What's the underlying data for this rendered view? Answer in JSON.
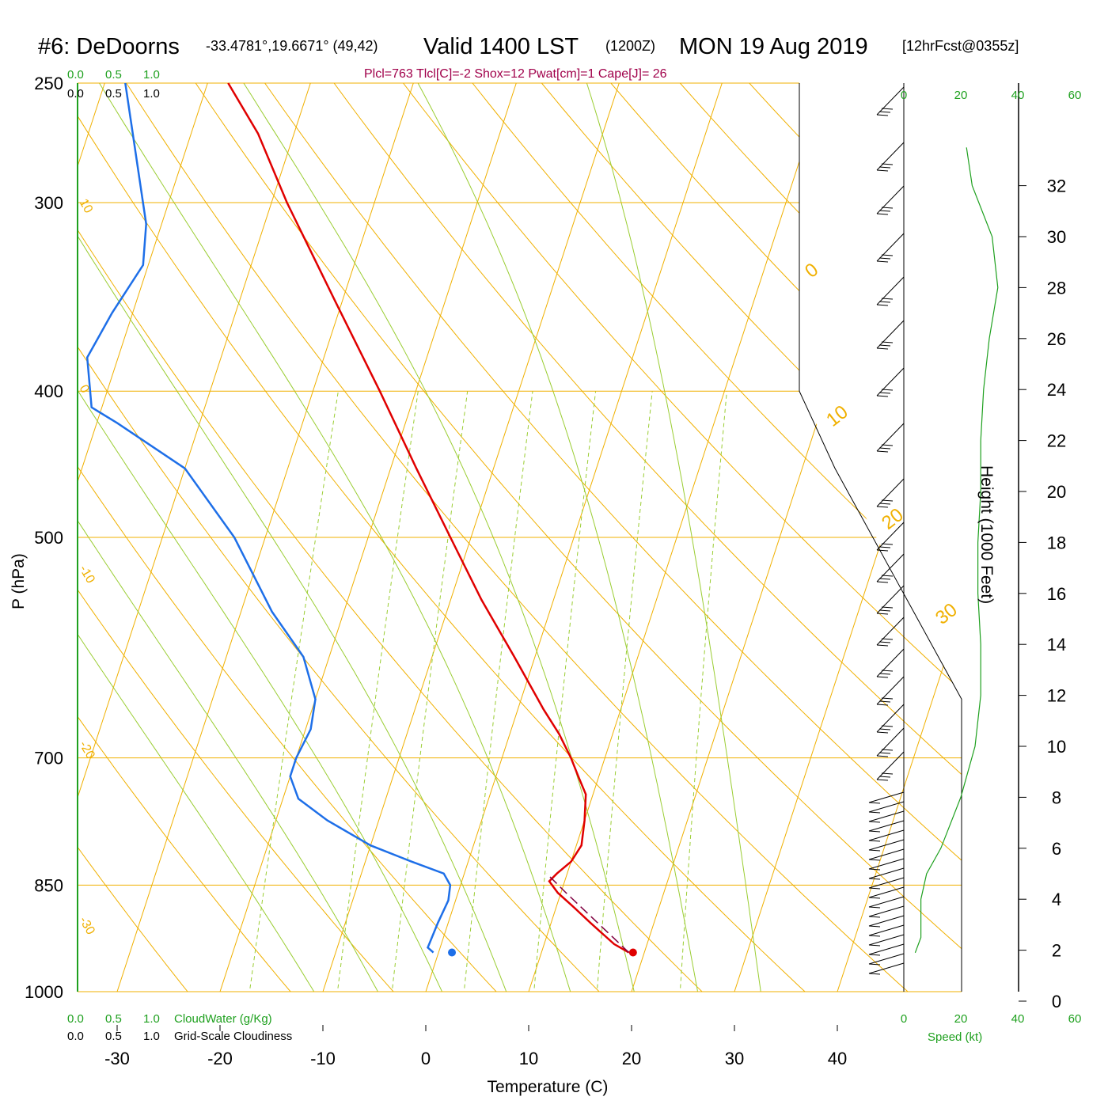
{
  "header": {
    "station": "#6: DeDoorns",
    "coords": "-33.4781°,19.6671° (49,42)",
    "valid": "Valid 1400 LST",
    "zulu": "(1200Z)",
    "date": "MON 19 Aug 2019",
    "forecast": "[12hrFcst@0355z]",
    "stats": "Plcl=763 Tlcl[C]=-2 Shox=12 Pwat[cm]=1 Cape[J]= 26"
  },
  "axes": {
    "y_label": "P (hPa)",
    "x_label": "Temperature (C)",
    "height_label": "Height (1000 Feet)",
    "speed_label": "Speed (kt)",
    "cloudwater_label": "CloudWater (g/Kg)",
    "cloudiness_label": "Grid-Scale Cloudiness",
    "cloud_scale": [
      "0.0",
      "0.5",
      "1.0"
    ],
    "pressure_ticks": [
      "250",
      "300",
      "400",
      "500",
      "700",
      "850",
      "1000"
    ],
    "temp_ticks": [
      "-30",
      "-20",
      "-10",
      "0",
      "10",
      "20",
      "30",
      "40"
    ],
    "height_ticks": [
      "0",
      "2",
      "4",
      "6",
      "8",
      "10",
      "12",
      "14",
      "16",
      "18",
      "20",
      "22",
      "24",
      "26",
      "28",
      "30",
      "32"
    ],
    "speed_ticks": [
      "0",
      "20",
      "40",
      "60"
    ]
  },
  "colors": {
    "temperature": "#e00000",
    "dewpoint": "#1e6fe8",
    "isotherm": "#f0b000",
    "adiabat": "#9acd32",
    "mixing": "#9acd32",
    "green_text": "#1ea01e",
    "stats": "#a0004a"
  },
  "chart_data": {
    "type": "line",
    "title": "Valid 1400 LST (1200Z) MON 19 Aug 2019",
    "xlabel": "Temperature (C)",
    "ylabel": "P (hPa)",
    "log_pressure_axis": true,
    "xlim": [
      -34,
      36
    ],
    "ylim": [
      1000,
      250
    ],
    "series": [
      {
        "id": "temperature",
        "points": [
          {
            "p": 942,
            "t": 18.5
          },
          {
            "p": 930,
            "t": 16.8
          },
          {
            "p": 915,
            "t": 15.3
          },
          {
            "p": 900,
            "t": 13.8
          },
          {
            "p": 880,
            "t": 11.8
          },
          {
            "p": 860,
            "t": 9.7
          },
          {
            "p": 845,
            "t": 8.5
          },
          {
            "p": 835,
            "t": 9.0
          },
          {
            "p": 820,
            "t": 10.0
          },
          {
            "p": 800,
            "t": 10.5
          },
          {
            "p": 770,
            "t": 10.0
          },
          {
            "p": 740,
            "t": 9.3
          },
          {
            "p": 720,
            "t": 8.0
          },
          {
            "p": 700,
            "t": 6.7
          },
          {
            "p": 675,
            "t": 4.8
          },
          {
            "p": 650,
            "t": 2.5
          },
          {
            "p": 600,
            "t": -2.0
          },
          {
            "p": 550,
            "t": -7.0
          },
          {
            "p": 500,
            "t": -12.0
          },
          {
            "p": 450,
            "t": -17.5
          },
          {
            "p": 400,
            "t": -23.5
          },
          {
            "p": 350,
            "t": -30.5
          },
          {
            "p": 300,
            "t": -38.5
          },
          {
            "p": 270,
            "t": -43.5
          },
          {
            "p": 250,
            "t": -48.0
          }
        ]
      },
      {
        "id": "dewpoint",
        "points": [
          {
            "p": 942,
            "t": -0.5
          },
          {
            "p": 935,
            "t": -1.2
          },
          {
            "p": 900,
            "t": -1.0
          },
          {
            "p": 870,
            "t": -0.7
          },
          {
            "p": 850,
            "t": -1.0
          },
          {
            "p": 835,
            "t": -2.0
          },
          {
            "p": 820,
            "t": -5.5
          },
          {
            "p": 800,
            "t": -10.0
          },
          {
            "p": 770,
            "t": -15.0
          },
          {
            "p": 745,
            "t": -18.5
          },
          {
            "p": 720,
            "t": -20.0
          },
          {
            "p": 700,
            "t": -20.0
          },
          {
            "p": 670,
            "t": -19.5
          },
          {
            "p": 640,
            "t": -20.0
          },
          {
            "p": 600,
            "t": -22.5
          },
          {
            "p": 560,
            "t": -27.0
          },
          {
            "p": 500,
            "t": -33.0
          },
          {
            "p": 450,
            "t": -40.0
          },
          {
            "p": 420,
            "t": -48.0
          },
          {
            "p": 410,
            "t": -51.0
          },
          {
            "p": 380,
            "t": -53.0
          },
          {
            "p": 355,
            "t": -52.0
          },
          {
            "p": 330,
            "t": -50.5
          },
          {
            "p": 310,
            "t": -51.5
          },
          {
            "p": 250,
            "t": -58.0
          }
        ]
      },
      {
        "id": "parcel",
        "dashed": true,
        "points": [
          {
            "p": 942,
            "t": 18.5
          },
          {
            "p": 900,
            "t": 14.5
          },
          {
            "p": 860,
            "t": 10.5
          },
          {
            "p": 835,
            "t": 8.0
          }
        ]
      }
    ],
    "surface_markers": [
      {
        "kind": "temperature",
        "p": 942,
        "t": 18.9
      },
      {
        "kind": "dewpoint",
        "p": 942,
        "t": 1.3
      }
    ],
    "isotherms_c": [
      -100,
      -90,
      -80,
      -70,
      -60,
      -50,
      -40,
      -30,
      -20,
      -10,
      0,
      10,
      20,
      30,
      40
    ],
    "isotherm_labels": [
      {
        "t": 10,
        "text": "10"
      },
      {
        "t": 0,
        "text": "0"
      },
      {
        "t": -10,
        "text": "-10"
      },
      {
        "t": -20,
        "text": "-20"
      },
      {
        "t": -30,
        "text": "-30"
      },
      {
        "t": 0,
        "text": "0"
      },
      {
        "t": 10,
        "text": "10"
      },
      {
        "t": 20,
        "text": "20"
      },
      {
        "t": 30,
        "text": "30"
      }
    ],
    "mixing_ratios_gkg": [
      "1",
      "2",
      "3",
      "5",
      "8",
      "12",
      "20"
    ],
    "height_scale_kft": [
      0,
      2,
      4,
      6,
      8,
      10,
      12,
      14,
      16,
      18,
      20,
      22,
      24,
      26,
      28,
      30,
      32
    ],
    "wind_speed_profile_kt": [
      {
        "h": 1.9,
        "s": 4
      },
      {
        "h": 2.5,
        "s": 6
      },
      {
        "h": 4,
        "s": 6
      },
      {
        "h": 5,
        "s": 8
      },
      {
        "h": 6,
        "s": 13
      },
      {
        "h": 8,
        "s": 20
      },
      {
        "h": 10,
        "s": 25
      },
      {
        "h": 12,
        "s": 27
      },
      {
        "h": 14,
        "s": 27
      },
      {
        "h": 16,
        "s": 26
      },
      {
        "h": 18,
        "s": 26
      },
      {
        "h": 20,
        "s": 27
      },
      {
        "h": 22,
        "s": 27
      },
      {
        "h": 24,
        "s": 28
      },
      {
        "h": 26,
        "s": 30
      },
      {
        "h": 28,
        "s": 33
      },
      {
        "h": 30,
        "s": 31
      },
      {
        "h": 32,
        "s": 24
      },
      {
        "h": 33.5,
        "s": 22
      }
    ]
  }
}
